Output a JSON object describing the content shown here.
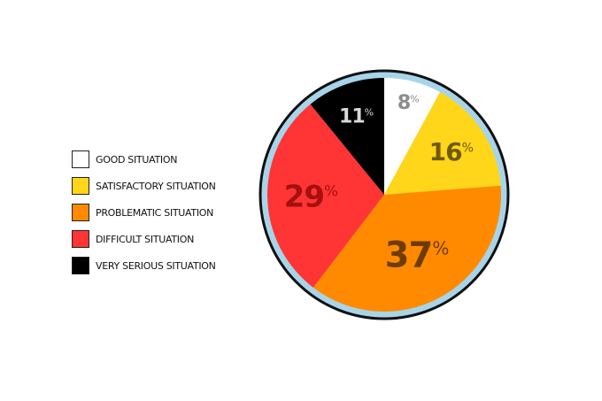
{
  "chart_data": {
    "type": "pie",
    "categories": [
      "GOOD SITUATION",
      "SATISFACTORY SITUATION",
      "PROBLEMATIC SITUATION",
      "DIFFICULT SITUATION",
      "VERY SERIOUS SITUATION"
    ],
    "values": [
      8,
      16,
      37,
      29,
      11
    ],
    "value_labels": [
      "8",
      "16",
      "37",
      "29",
      "11"
    ],
    "unit": "%",
    "colors": [
      "#ffffff",
      "#ffd619",
      "#ff8a00",
      "#ff3535",
      "#000000"
    ],
    "label_colors": [
      "#8c8c8c",
      "#6e5a00",
      "#6e3c00",
      "#a51010",
      "#d9d9d9"
    ],
    "title": "",
    "legend_placement": "left",
    "start": "top",
    "direction": "clockwise"
  },
  "legend": {
    "items": [
      {
        "label": "GOOD SITUATION",
        "color": "#ffffff"
      },
      {
        "label": "SATISFACTORY SITUATION",
        "color": "#ffd619"
      },
      {
        "label": "PROBLEMATIC SITUATION",
        "color": "#ff8a00"
      },
      {
        "label": "DIFFICULT SITUATION",
        "color": "#ff3535"
      },
      {
        "label": "VERY SERIOUS SITUATION",
        "color": "#000000"
      }
    ]
  }
}
